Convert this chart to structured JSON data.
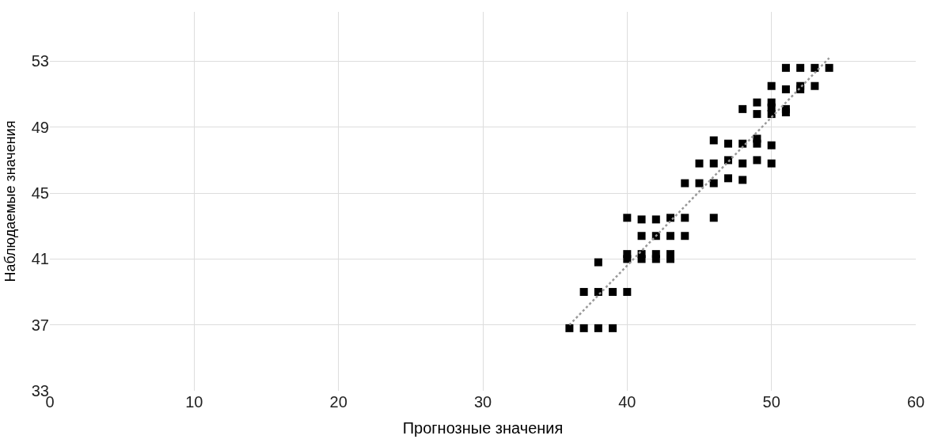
{
  "chart_data": {
    "type": "scatter",
    "xlabel": "Прогнозные значения",
    "ylabel": "Наблюдаемые значения",
    "xlim": [
      0,
      60
    ],
    "xticks": [
      0,
      10,
      20,
      30,
      40,
      50,
      60
    ],
    "ylim": [
      33,
      56
    ],
    "yticks": [
      33,
      37,
      41,
      45,
      49,
      53
    ],
    "grid": true,
    "marker": "square",
    "series": [
      {
        "color": "#000000",
        "x": [
          36,
          37,
          38,
          39,
          37,
          38,
          39,
          40,
          38,
          40,
          40,
          41,
          41,
          42,
          42,
          43,
          43,
          41,
          42,
          43,
          44,
          40,
          41,
          42,
          43,
          44,
          46,
          44,
          45,
          46,
          47,
          48,
          45,
          46,
          47,
          48,
          49,
          50,
          46,
          47,
          48,
          49,
          49,
          50,
          48,
          49,
          49,
          50,
          50,
          50,
          51,
          51,
          50,
          51,
          52,
          52,
          53,
          51,
          52,
          53,
          54
        ],
        "values": [
          36.8,
          36.8,
          36.8,
          36.8,
          39.0,
          39.0,
          39.0,
          39.0,
          40.8,
          41.0,
          41.3,
          41.0,
          41.3,
          41.0,
          41.3,
          41.0,
          41.3,
          42.4,
          42.4,
          42.4,
          42.4,
          43.5,
          43.4,
          43.4,
          43.5,
          43.5,
          43.5,
          45.6,
          45.6,
          45.6,
          45.9,
          45.8,
          46.8,
          46.8,
          47.0,
          46.8,
          47.0,
          46.8,
          48.2,
          48.0,
          48.0,
          48.0,
          48.3,
          47.9,
          50.1,
          50.5,
          49.8,
          50.5,
          50.2,
          49.8,
          49.9,
          50.1,
          51.5,
          51.3,
          51.3,
          51.5,
          51.5,
          52.6,
          52.6,
          52.6,
          52.6
        ]
      },
      {
        "type": "line",
        "color": "#999999",
        "line_style": "dotted",
        "marker": "none",
        "x": [
          36,
          54
        ],
        "values": [
          37.0,
          53.2
        ]
      }
    ]
  }
}
